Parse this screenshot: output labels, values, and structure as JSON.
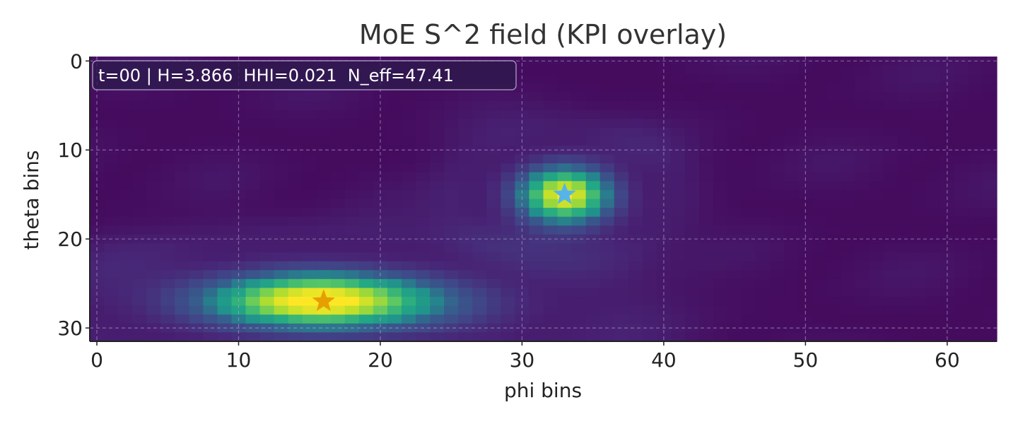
{
  "chart_data": {
    "type": "heatmap",
    "title": "MoE S^2 field (KPI overlay)",
    "xlabel": "phi bins",
    "ylabel": "theta bins",
    "xlim": [
      -0.5,
      63.5
    ],
    "ylim": [
      31.5,
      -0.5
    ],
    "x_ticks": [
      0,
      10,
      20,
      30,
      40,
      50,
      60
    ],
    "y_ticks": [
      0,
      10,
      20,
      30
    ],
    "grid": true,
    "colormap": "viridis",
    "grid_size": {
      "theta_bins": 32,
      "phi_bins": 64
    },
    "annotation": "t=00 | H=3.866  HHI=0.021  N_eff=47.41",
    "peaks": [
      {
        "theta": 27,
        "phi": 16,
        "intensity": 1.0,
        "theta_spread": 2.2,
        "phi_spread": 6.0,
        "marker": "star",
        "marker_color": "#E69F00"
      },
      {
        "theta": 15,
        "phi": 33,
        "intensity": 0.95,
        "theta_spread": 2.2,
        "phi_spread": 2.3,
        "marker": "star",
        "marker_color": "#56B4E9"
      }
    ]
  },
  "colors": {
    "axis": "#222222",
    "grid": "#b9a6d6",
    "text": "#2b2b2b",
    "label_box": "#2d1a4d"
  }
}
